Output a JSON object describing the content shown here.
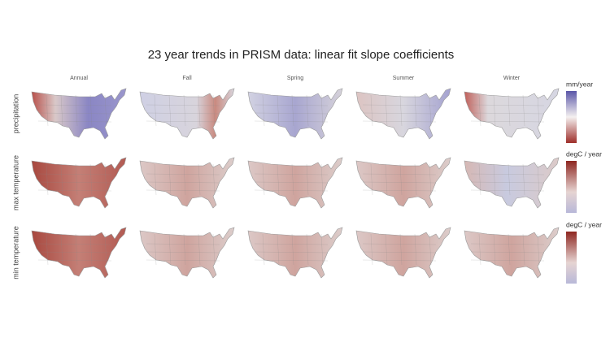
{
  "title": "23 year trends in PRISM data: linear fit slope coefficients",
  "columns": [
    "Annual",
    "Fall",
    "Spring",
    "Summer",
    "Winter"
  ],
  "rows": [
    {
      "label": "precipitation",
      "colorbar_label": "mm/year"
    },
    {
      "label": "max temperature",
      "colorbar_label": "degC / year"
    },
    {
      "label": "min temperature",
      "colorbar_label": "degC / year"
    }
  ]
}
